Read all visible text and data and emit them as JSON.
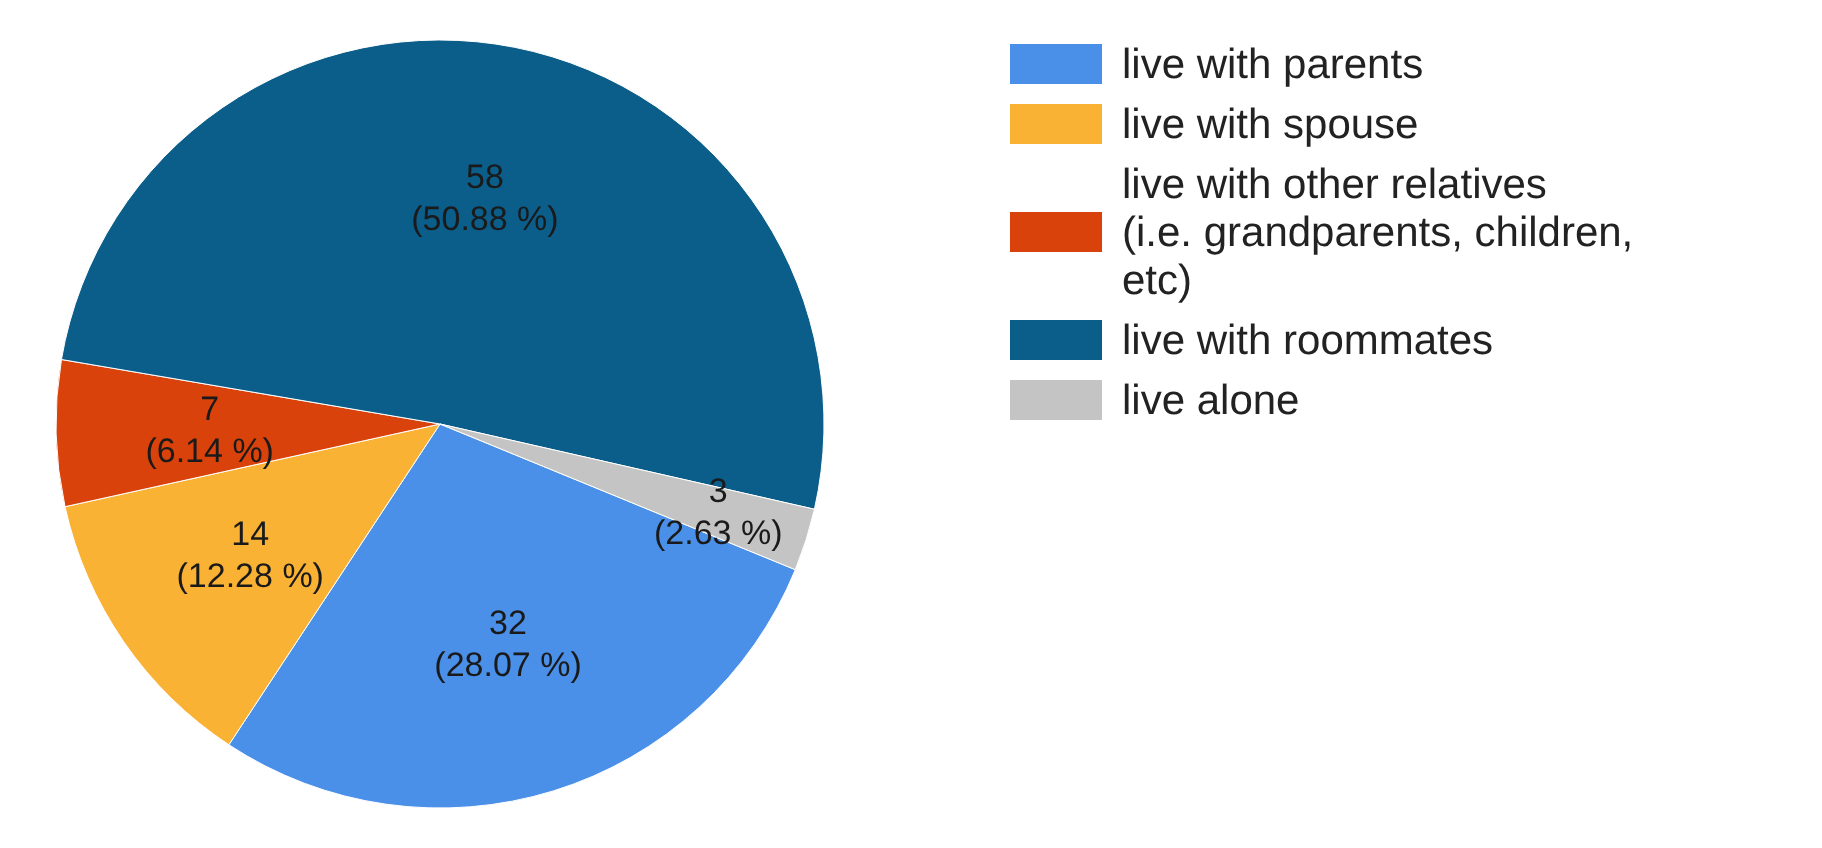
{
  "chart_data": {
    "type": "pie",
    "categories": [
      "live with parents",
      "live with spouse",
      "live with other relatives (i.e. grandparents, children, etc)",
      "live with roommates",
      "live alone"
    ],
    "values": [
      32,
      14,
      7,
      58,
      3
    ],
    "colors": [
      "#4a8fe8",
      "#f9b233",
      "#d9420b",
      "#0b5d8a",
      "#c4c4c4"
    ],
    "value_labels": [
      "32\n(28.07 %)",
      "14\n(12.28 %)",
      "7\n(6.14 %)",
      "58\n(50.88 %)",
      "3\n(2.63 %)"
    ],
    "legend": "right"
  }
}
